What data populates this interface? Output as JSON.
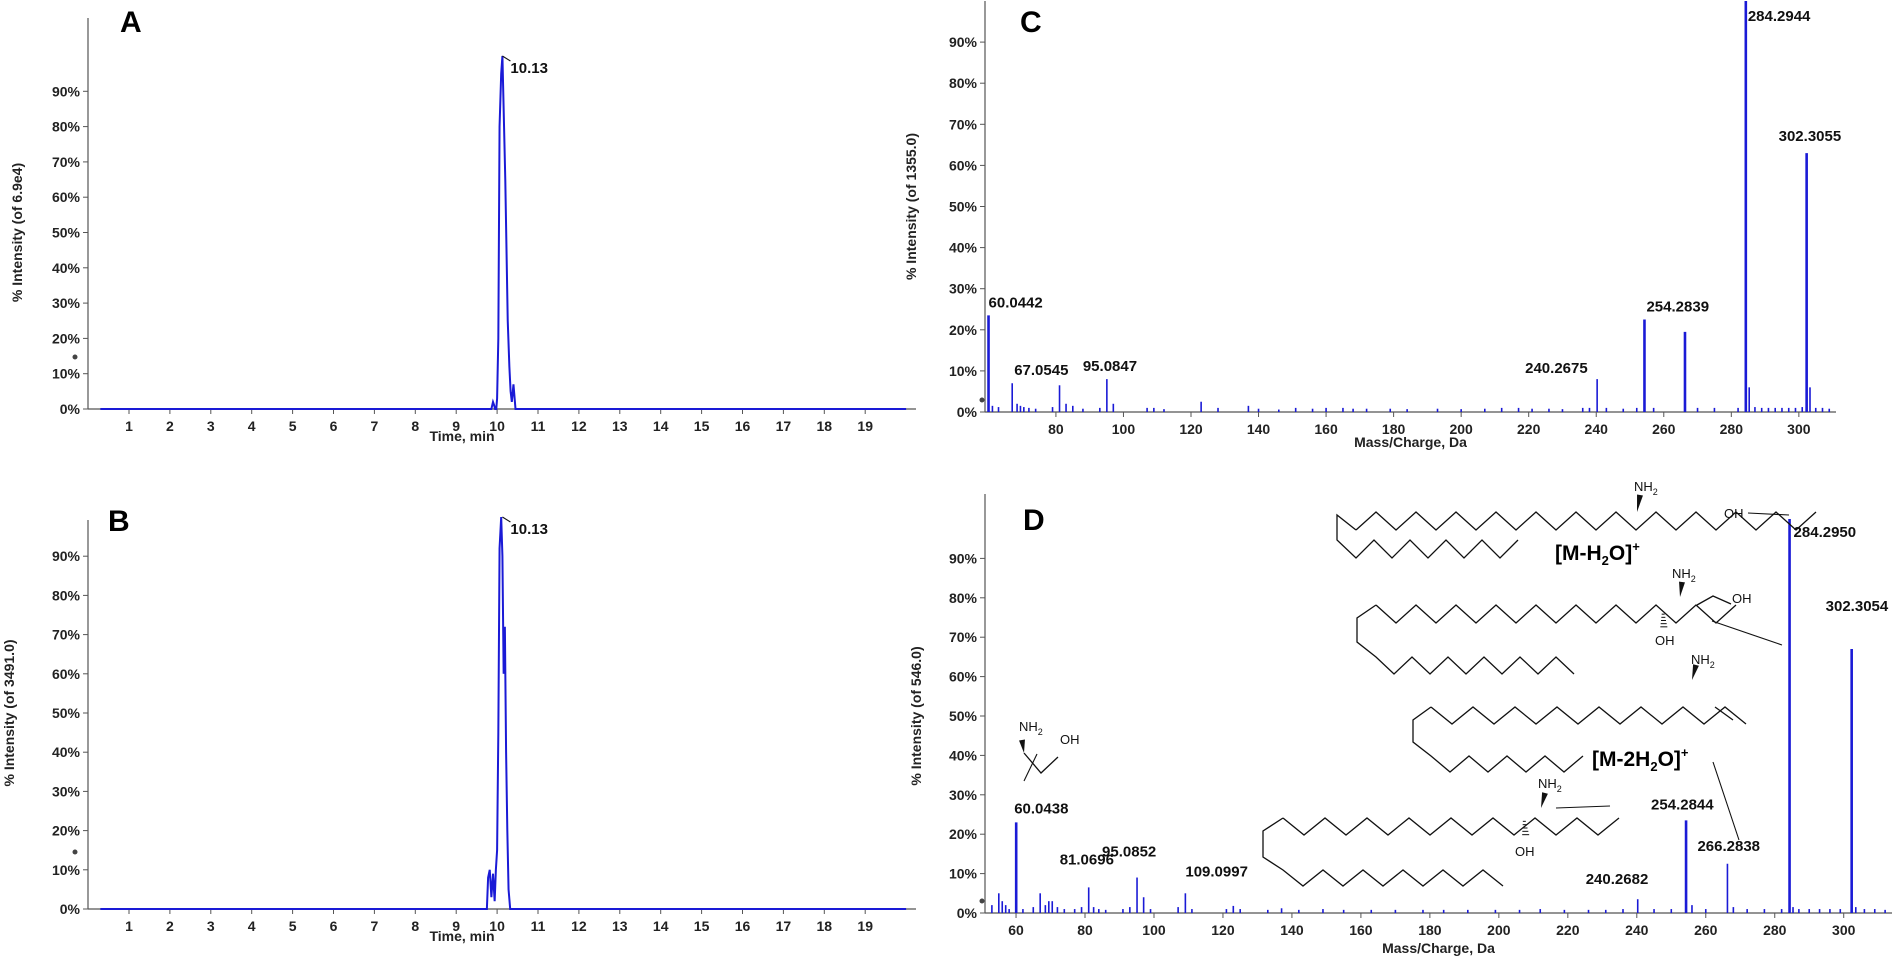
{
  "colors": {
    "trace": "#1a1ad6",
    "axis": "#555555",
    "text": "#222222"
  },
  "chart_data": [
    {
      "id": "A",
      "type": "line",
      "title": "A",
      "xlabel": "Time, min",
      "ylabel": "% Intensity (of 6.9e4)",
      "xlim": [
        0,
        20
      ],
      "ylim": [
        0,
        100
      ],
      "xticks": [
        1,
        2,
        3,
        4,
        5,
        6,
        7,
        8,
        9,
        10,
        11,
        12,
        13,
        14,
        15,
        16,
        17,
        18,
        19
      ],
      "yticks": [
        0,
        10,
        20,
        30,
        40,
        50,
        60,
        70,
        80,
        90
      ],
      "x": [
        0,
        9.8,
        9.86,
        9.9,
        9.93,
        9.95,
        9.98,
        10.0,
        10.03,
        10.06,
        10.1,
        10.13,
        10.16,
        10.2,
        10.23,
        10.26,
        10.3,
        10.33,
        10.36,
        10.4,
        10.45,
        20
      ],
      "y": [
        0,
        0,
        0,
        2,
        1,
        0,
        0,
        3,
        20,
        80,
        95,
        100,
        85,
        65,
        45,
        25,
        12,
        5,
        2,
        7,
        0,
        0
      ],
      "annotations": [
        {
          "x": 10.13,
          "y": 100,
          "text": "10.13"
        }
      ]
    },
    {
      "id": "B",
      "type": "line",
      "title": "B",
      "xlabel": "Time, min",
      "ylabel": "% Intensity (of 3491.0)",
      "xlim": [
        0,
        20
      ],
      "ylim": [
        0,
        100
      ],
      "xticks": [
        1,
        2,
        3,
        4,
        5,
        6,
        7,
        8,
        9,
        10,
        11,
        12,
        13,
        14,
        15,
        16,
        17,
        18,
        19
      ],
      "yticks": [
        0,
        10,
        20,
        30,
        40,
        50,
        60,
        70,
        80,
        90
      ],
      "x": [
        0,
        9.75,
        9.78,
        9.82,
        9.86,
        9.9,
        9.94,
        9.97,
        10.0,
        10.03,
        10.06,
        10.1,
        10.13,
        10.16,
        10.19,
        10.22,
        10.25,
        10.28,
        10.32,
        20
      ],
      "y": [
        0,
        0,
        8,
        10,
        3,
        9,
        2,
        10,
        15,
        45,
        92,
        100,
        90,
        60,
        72,
        40,
        20,
        5,
        0,
        0
      ],
      "annotations": [
        {
          "x": 10.13,
          "y": 100,
          "text": "10.13"
        }
      ]
    },
    {
      "id": "C",
      "type": "bar",
      "title": "C",
      "xlabel": "Mass/Charge, Da",
      "ylabel": "% Intensity (of 1355.0)",
      "xlim": [
        59,
        311
      ],
      "ylim": [
        0,
        100
      ],
      "xticks": [
        80,
        100,
        120,
        140,
        160,
        180,
        200,
        220,
        240,
        260,
        280,
        300
      ],
      "yticks": [
        0,
        10,
        20,
        30,
        40,
        50,
        60,
        70,
        80,
        90
      ],
      "peaks": [
        {
          "mz": 60.0442,
          "intensity": 23.5
        },
        {
          "mz": 61.2,
          "intensity": 1.5
        },
        {
          "mz": 63.0,
          "intensity": 1.2
        },
        {
          "mz": 67.0545,
          "intensity": 7
        },
        {
          "mz": 68.5,
          "intensity": 2
        },
        {
          "mz": 69.5,
          "intensity": 1.5
        },
        {
          "mz": 70.5,
          "intensity": 1.2
        },
        {
          "mz": 72.0,
          "intensity": 1
        },
        {
          "mz": 74.0,
          "intensity": 0.8
        },
        {
          "mz": 79.0,
          "intensity": 1.2
        },
        {
          "mz": 81.07,
          "intensity": 6.5
        },
        {
          "mz": 83.0,
          "intensity": 2
        },
        {
          "mz": 85.0,
          "intensity": 1.5
        },
        {
          "mz": 88.0,
          "intensity": 0.8
        },
        {
          "mz": 93.0,
          "intensity": 1
        },
        {
          "mz": 95.0847,
          "intensity": 8
        },
        {
          "mz": 97.0,
          "intensity": 2
        },
        {
          "mz": 107.0,
          "intensity": 1
        },
        {
          "mz": 109.0,
          "intensity": 1
        },
        {
          "mz": 112.0,
          "intensity": 0.7
        },
        {
          "mz": 123.0,
          "intensity": 2.5
        },
        {
          "mz": 128.0,
          "intensity": 1
        },
        {
          "mz": 137.0,
          "intensity": 1.5
        },
        {
          "mz": 140.0,
          "intensity": 0.8
        },
        {
          "mz": 146.0,
          "intensity": 0.6
        },
        {
          "mz": 151.0,
          "intensity": 1
        },
        {
          "mz": 156.0,
          "intensity": 0.8
        },
        {
          "mz": 160.0,
          "intensity": 1
        },
        {
          "mz": 165.0,
          "intensity": 1
        },
        {
          "mz": 168.0,
          "intensity": 0.8
        },
        {
          "mz": 172.0,
          "intensity": 0.8
        },
        {
          "mz": 179.0,
          "intensity": 0.8
        },
        {
          "mz": 184.0,
          "intensity": 0.7
        },
        {
          "mz": 193.0,
          "intensity": 0.8
        },
        {
          "mz": 200.0,
          "intensity": 0.7
        },
        {
          "mz": 207.0,
          "intensity": 0.8
        },
        {
          "mz": 212.0,
          "intensity": 1
        },
        {
          "mz": 217.0,
          "intensity": 1
        },
        {
          "mz": 221.0,
          "intensity": 0.8
        },
        {
          "mz": 226.0,
          "intensity": 0.8
        },
        {
          "mz": 230.0,
          "intensity": 0.7
        },
        {
          "mz": 236.0,
          "intensity": 1
        },
        {
          "mz": 238.0,
          "intensity": 1
        },
        {
          "mz": 240.2675,
          "intensity": 8
        },
        {
          "mz": 243.0,
          "intensity": 1
        },
        {
          "mz": 248.0,
          "intensity": 0.8
        },
        {
          "mz": 252.0,
          "intensity": 1
        },
        {
          "mz": 254.2839,
          "intensity": 22.5
        },
        {
          "mz": 257.0,
          "intensity": 1
        },
        {
          "mz": 266.28,
          "intensity": 19.5
        },
        {
          "mz": 270.0,
          "intensity": 1
        },
        {
          "mz": 275.0,
          "intensity": 1
        },
        {
          "mz": 282.0,
          "intensity": 1
        },
        {
          "mz": 284.2944,
          "intensity": 100
        },
        {
          "mz": 285.3,
          "intensity": 6
        },
        {
          "mz": 287.0,
          "intensity": 1.2
        },
        {
          "mz": 289.0,
          "intensity": 1
        },
        {
          "mz": 291.0,
          "intensity": 1
        },
        {
          "mz": 293.0,
          "intensity": 1
        },
        {
          "mz": 295.0,
          "intensity": 1
        },
        {
          "mz": 297.0,
          "intensity": 1
        },
        {
          "mz": 299.0,
          "intensity": 1
        },
        {
          "mz": 301.0,
          "intensity": 1.2
        },
        {
          "mz": 302.3055,
          "intensity": 63
        },
        {
          "mz": 303.3,
          "intensity": 6
        },
        {
          "mz": 305.0,
          "intensity": 1
        },
        {
          "mz": 307.0,
          "intensity": 1
        },
        {
          "mz": 309.0,
          "intensity": 0.8
        }
      ],
      "annotations": [
        {
          "x": 60.0442,
          "y": 23.5,
          "text": "60.0442"
        },
        {
          "x": 67.0545,
          "y": 7,
          "text": "67.0545"
        },
        {
          "x": 95.0847,
          "y": 8,
          "text": "95.0847"
        },
        {
          "x": 240.2675,
          "y": 8,
          "text": "240.2675"
        },
        {
          "x": 254.2839,
          "y": 22.5,
          "text": "254.2839"
        },
        {
          "x": 284.2944,
          "y": 100,
          "text": "284.2944"
        },
        {
          "x": 302.3055,
          "y": 63,
          "text": "302.3055"
        }
      ]
    },
    {
      "id": "D",
      "type": "bar",
      "title": "D",
      "xlabel": "Mass/Charge, Da",
      "ylabel": "% Intensity (of 546.0)",
      "xlim": [
        51,
        314
      ],
      "ylim": [
        0,
        100
      ],
      "xticks": [
        60,
        80,
        100,
        120,
        140,
        160,
        180,
        200,
        220,
        240,
        260,
        280,
        300
      ],
      "yticks": [
        0,
        10,
        20,
        30,
        40,
        50,
        60,
        70,
        80,
        90
      ],
      "peaks": [
        {
          "mz": 53.0,
          "intensity": 2
        },
        {
          "mz": 55.0,
          "intensity": 5
        },
        {
          "mz": 56.0,
          "intensity": 3
        },
        {
          "mz": 57.0,
          "intensity": 2
        },
        {
          "mz": 58.0,
          "intensity": 1
        },
        {
          "mz": 60.0438,
          "intensity": 23
        },
        {
          "mz": 62.0,
          "intensity": 1
        },
        {
          "mz": 65.0,
          "intensity": 1.5
        },
        {
          "mz": 67.0,
          "intensity": 5
        },
        {
          "mz": 68.5,
          "intensity": 2
        },
        {
          "mz": 69.5,
          "intensity": 3
        },
        {
          "mz": 70.5,
          "intensity": 3
        },
        {
          "mz": 72.0,
          "intensity": 1.5
        },
        {
          "mz": 74.0,
          "intensity": 1
        },
        {
          "mz": 77.0,
          "intensity": 1
        },
        {
          "mz": 79.0,
          "intensity": 1.5
        },
        {
          "mz": 81.0696,
          "intensity": 6.5
        },
        {
          "mz": 82.5,
          "intensity": 1.5
        },
        {
          "mz": 84.0,
          "intensity": 1
        },
        {
          "mz": 86.0,
          "intensity": 0.8
        },
        {
          "mz": 91.0,
          "intensity": 1
        },
        {
          "mz": 93.0,
          "intensity": 1.5
        },
        {
          "mz": 95.0852,
          "intensity": 9
        },
        {
          "mz": 97.0,
          "intensity": 4
        },
        {
          "mz": 99.0,
          "intensity": 1
        },
        {
          "mz": 107.0,
          "intensity": 1.5
        },
        {
          "mz": 109.0997,
          "intensity": 5
        },
        {
          "mz": 111.0,
          "intensity": 1
        },
        {
          "mz": 121.0,
          "intensity": 1
        },
        {
          "mz": 123.0,
          "intensity": 1.8
        },
        {
          "mz": 125.0,
          "intensity": 1
        },
        {
          "mz": 133.0,
          "intensity": 0.8
        },
        {
          "mz": 137.0,
          "intensity": 1.2
        },
        {
          "mz": 142.0,
          "intensity": 0.8
        },
        {
          "mz": 149.0,
          "intensity": 1
        },
        {
          "mz": 155.0,
          "intensity": 0.8
        },
        {
          "mz": 163.0,
          "intensity": 0.8
        },
        {
          "mz": 170.0,
          "intensity": 0.8
        },
        {
          "mz": 178.0,
          "intensity": 0.8
        },
        {
          "mz": 184.0,
          "intensity": 0.8
        },
        {
          "mz": 191.0,
          "intensity": 0.8
        },
        {
          "mz": 199.0,
          "intensity": 0.8
        },
        {
          "mz": 206.0,
          "intensity": 0.8
        },
        {
          "mz": 212.0,
          "intensity": 1
        },
        {
          "mz": 219.0,
          "intensity": 0.8
        },
        {
          "mz": 226.0,
          "intensity": 0.8
        },
        {
          "mz": 231.0,
          "intensity": 0.8
        },
        {
          "mz": 236.0,
          "intensity": 1
        },
        {
          "mz": 240.2682,
          "intensity": 3.5
        },
        {
          "mz": 245.0,
          "intensity": 1
        },
        {
          "mz": 250.0,
          "intensity": 1
        },
        {
          "mz": 254.2844,
          "intensity": 23.5
        },
        {
          "mz": 256.0,
          "intensity": 2
        },
        {
          "mz": 260.0,
          "intensity": 1
        },
        {
          "mz": 266.2838,
          "intensity": 12.5
        },
        {
          "mz": 268.0,
          "intensity": 1.5
        },
        {
          "mz": 272.0,
          "intensity": 1
        },
        {
          "mz": 277.0,
          "intensity": 1
        },
        {
          "mz": 282.0,
          "intensity": 1
        },
        {
          "mz": 284.295,
          "intensity": 100
        },
        {
          "mz": 285.3,
          "intensity": 1.5
        },
        {
          "mz": 287.0,
          "intensity": 1
        },
        {
          "mz": 290.0,
          "intensity": 1
        },
        {
          "mz": 293.0,
          "intensity": 1
        },
        {
          "mz": 296.0,
          "intensity": 1
        },
        {
          "mz": 299.0,
          "intensity": 1
        },
        {
          "mz": 302.3054,
          "intensity": 67
        },
        {
          "mz": 303.5,
          "intensity": 1.5
        },
        {
          "mz": 306.0,
          "intensity": 1
        },
        {
          "mz": 309.0,
          "intensity": 1
        },
        {
          "mz": 312.0,
          "intensity": 0.8
        }
      ],
      "annotations": [
        {
          "x": 60.0438,
          "y": 23,
          "text": "60.0438"
        },
        {
          "x": 81.0696,
          "y": 6.5,
          "text": "81.0696"
        },
        {
          "x": 95.0852,
          "y": 9,
          "text": "95.0852"
        },
        {
          "x": 109.0997,
          "y": 5,
          "text": "109.0997"
        },
        {
          "x": 240.2682,
          "y": 3.5,
          "text": "240.2682"
        },
        {
          "x": 254.2844,
          "y": 23.5,
          "text": "254.2844"
        },
        {
          "x": 266.2838,
          "y": 12.5,
          "text": "266.2838"
        },
        {
          "x": 284.295,
          "y": 100,
          "text": "284.2950"
        },
        {
          "x": 302.3054,
          "y": 67,
          "text": "302.3054"
        }
      ],
      "structure_labels": {
        "ion_dehydrated": {
          "main": "[M-H",
          "sub": "2",
          "tail": "O]",
          "sup": "+"
        },
        "ion_double_dehydrated": {
          "main": "[M-2H",
          "sub": "2",
          "tail": "O]",
          "sup": "+"
        },
        "nh2": {
          "main": "NH",
          "sub": "2"
        },
        "oh": "OH"
      }
    }
  ]
}
